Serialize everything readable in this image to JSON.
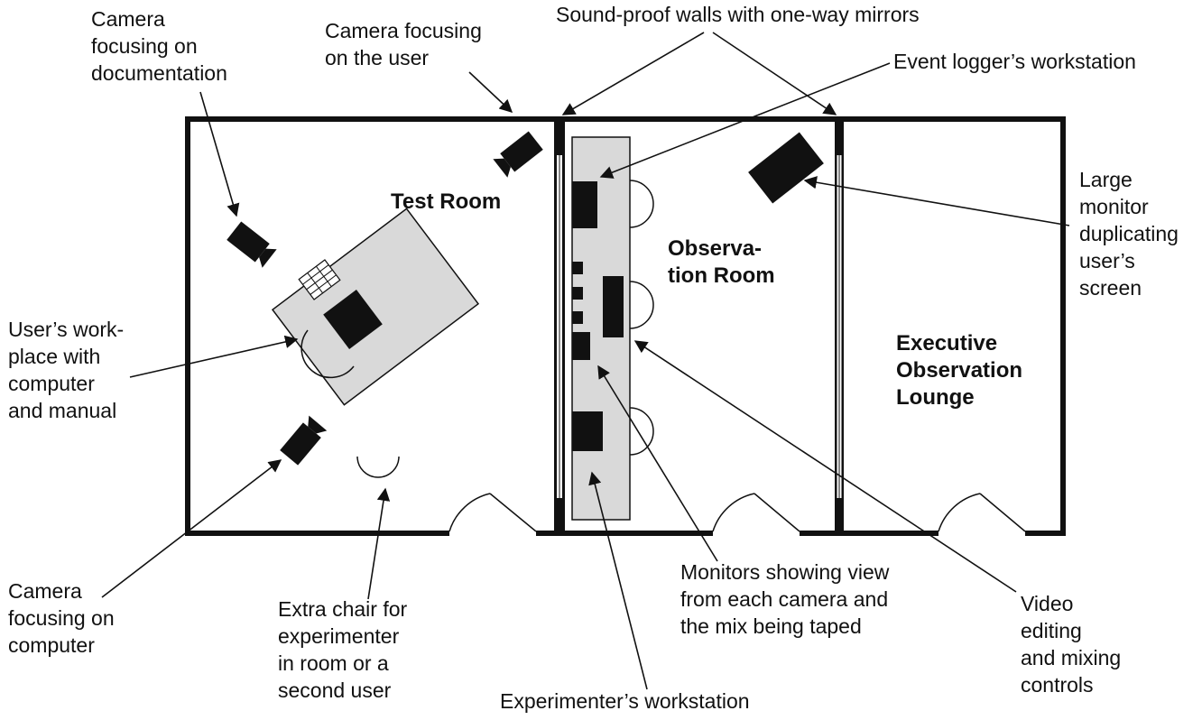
{
  "rooms": {
    "test": "Test Room",
    "observation": "Observa-\ntion Room",
    "executive": "Executive\nObservation\nLounge"
  },
  "labels": {
    "camera_documentation": "Camera\nfocusing on\ndocumentation",
    "camera_user": "Camera focusing\non the user",
    "soundproof_walls": "Sound-proof walls with one-way mirrors",
    "event_logger": "Event logger’s workstation",
    "large_monitor": "Large\nmonitor\nduplicating\nuser’s\nscreen",
    "user_workplace": "User’s work-\nplace with\ncomputer\nand manual",
    "camera_computer": "Camera\nfocusing on\ncomputer",
    "extra_chair": "Extra chair for\nexperimenter\nin room or a\nsecond user",
    "monitors": "Monitors showing view\nfrom each camera and\nthe mix being taped",
    "video_editing": "Video\nediting\nand mixing\ncontrols",
    "experimenter_workstation": "Experimenter’s workstation"
  },
  "colors": {
    "ink": "#111111",
    "desk_fill": "#d9d9d9",
    "background": "#ffffff"
  }
}
